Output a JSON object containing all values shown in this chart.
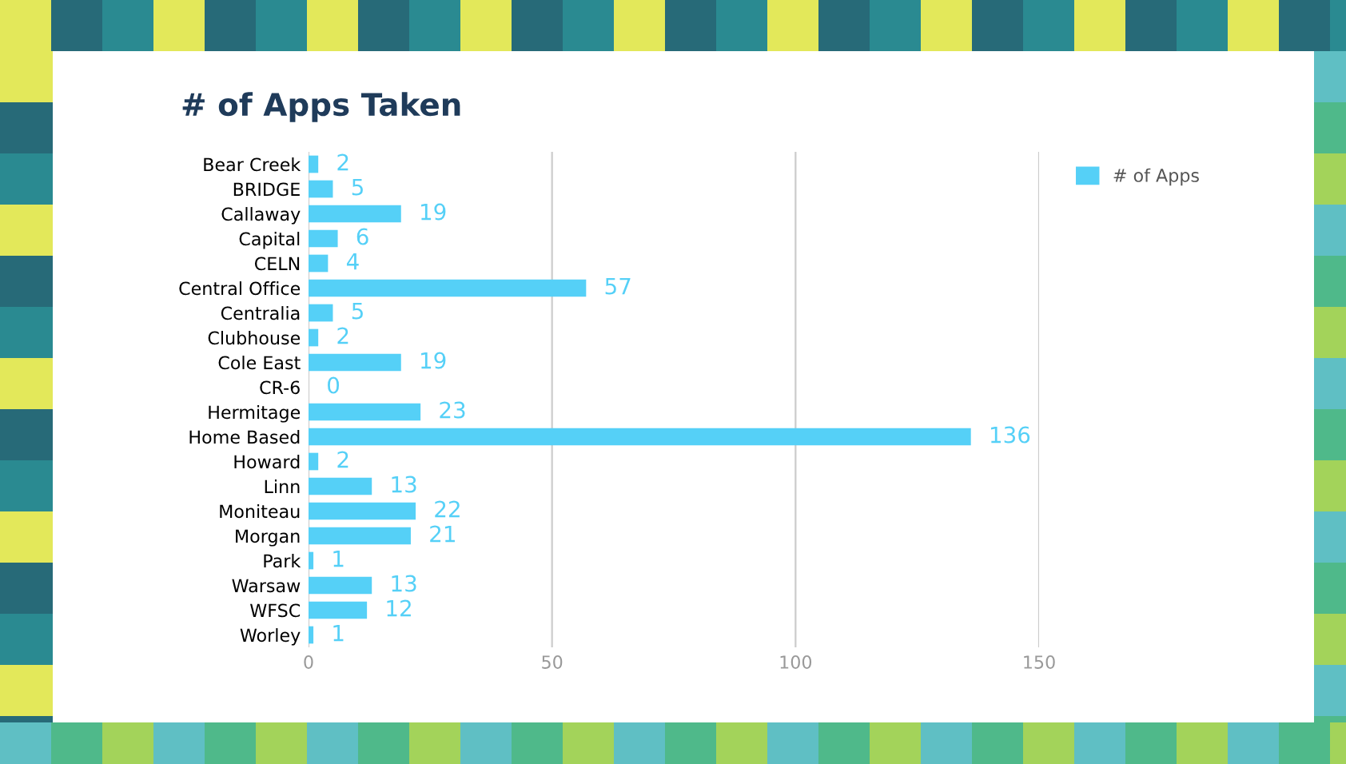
{
  "chart_data": {
    "type": "bar",
    "orientation": "horizontal",
    "title": "# of Apps Taken",
    "categories": [
      "Bear Creek",
      "BRIDGE",
      "Callaway",
      "Capital",
      "CELN",
      "Central Office",
      "Centralia",
      "Clubhouse",
      "Cole East",
      "CR-6",
      "Hermitage",
      "Home Based",
      "Howard",
      "Linn",
      "Moniteau",
      "Morgan",
      "Park",
      "Warsaw",
      "WFSC",
      "Worley"
    ],
    "series": [
      {
        "name": "# of Apps",
        "color": "#55d0f7",
        "values": [
          2,
          5,
          19,
          6,
          4,
          57,
          5,
          2,
          19,
          0,
          23,
          136,
          2,
          13,
          22,
          21,
          1,
          13,
          12,
          1
        ]
      }
    ],
    "xlim": [
      0,
      150
    ],
    "xticks": [
      0,
      50,
      100,
      150
    ],
    "grid": "x",
    "legend": "top right",
    "data_labels": true
  }
}
